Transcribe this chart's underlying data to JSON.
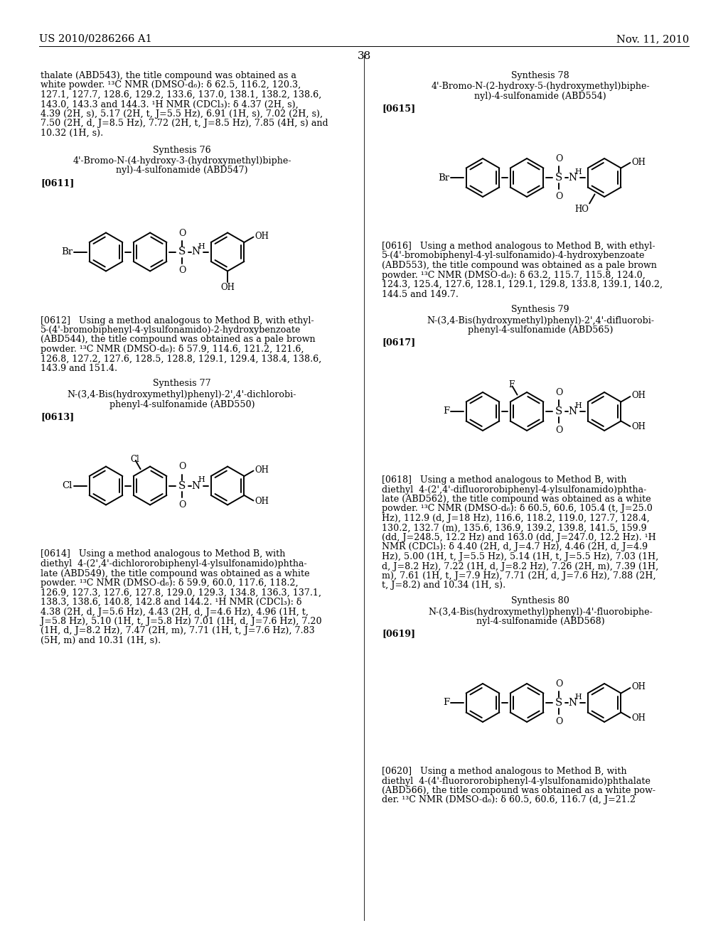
{
  "page_number": "38",
  "header_left": "US 2010/0286266 A1",
  "header_right": "Nov. 11, 2010",
  "background_color": "#ffffff",
  "text_color": "#000000"
}
